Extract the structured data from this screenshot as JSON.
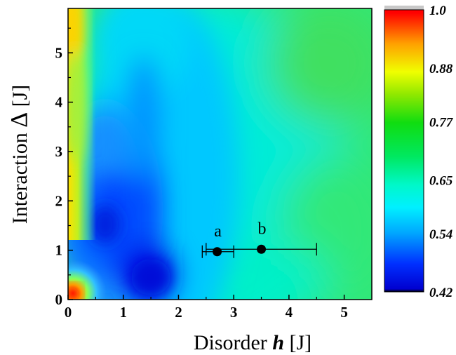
{
  "chart_data": {
    "type": "heatmap",
    "xlabel_prefix": "Disorder ",
    "xlabel_var": "h",
    "xlabel_unit": " [J]",
    "ylabel_prefix": "Interaction ",
    "ylabel_var": "Δ",
    "ylabel_unit": " [J]",
    "xlim": [
      0,
      5.5
    ],
    "ylim": [
      0,
      5.9
    ],
    "x_ticks": [
      "0",
      "1",
      "2",
      "3",
      "4",
      "5"
    ],
    "y_ticks": [
      "0",
      "1",
      "2",
      "3",
      "4",
      "5"
    ],
    "colorbar": {
      "range": [
        0.42,
        1.0
      ],
      "tick_labels": [
        "1.0",
        "0.88",
        "0.77",
        "0.65",
        "0.54",
        "0.42"
      ],
      "tick_values": [
        1.0,
        0.88,
        0.77,
        0.65,
        0.54,
        0.42
      ],
      "colormap": "rainbow"
    },
    "points": [
      {
        "label": "a",
        "x": 2.7,
        "y": 0.97,
        "xerr_low": 2.43,
        "xerr_high": 3.0
      },
      {
        "label": "b",
        "x": 3.5,
        "y": 1.02,
        "xerr_low": 2.5,
        "xerr_high": 4.5
      }
    ]
  }
}
